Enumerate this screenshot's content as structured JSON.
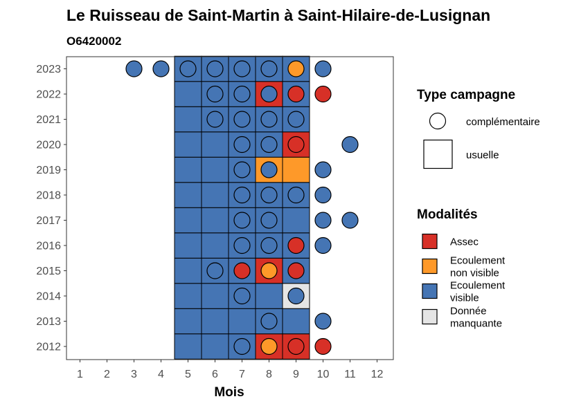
{
  "chart_data": {
    "type": "heatmap",
    "title": "Le Ruisseau de Saint-Martin à Saint-Hilaire-de-Lusignan",
    "subtitle": "O6420002",
    "xlabel": "Mois",
    "ylabel": "",
    "x_ticks": [
      "1",
      "2",
      "3",
      "4",
      "5",
      "6",
      "7",
      "8",
      "9",
      "10",
      "11",
      "12"
    ],
    "y_ticks": [
      "2012",
      "2013",
      "2014",
      "2015",
      "2016",
      "2017",
      "2018",
      "2019",
      "2020",
      "2021",
      "2022",
      "2023"
    ],
    "grid": false,
    "legend_position": "right",
    "colors": {
      "Assec": "#d73027",
      "Ecoulement non visible": "#fe9929",
      "Ecoulement visible": "#4575b4",
      "Donnée manquante": "#e5e5e5"
    },
    "legends": {
      "shape": {
        "title": "Type campagne",
        "items": [
          {
            "label": "complémentaire",
            "shape": "circle"
          },
          {
            "label": "usuelle",
            "shape": "square"
          }
        ]
      },
      "fill": {
        "title": "Modalités",
        "items": [
          {
            "key": "Assec",
            "lines": [
              "Assec"
            ]
          },
          {
            "key": "Ecoulement non visible",
            "lines": [
              "Ecoulement",
              "non visible"
            ]
          },
          {
            "key": "Ecoulement visible",
            "lines": [
              "Ecoulement",
              "visible"
            ]
          },
          {
            "key": "Donnée manquante",
            "lines": [
              "Donnée",
              "manquante"
            ]
          }
        ]
      }
    },
    "usuelle": [
      {
        "year": 2012,
        "values": {
          "5": "Ecoulement visible",
          "6": "Ecoulement visible",
          "7": "Ecoulement visible",
          "8": "Assec",
          "9": "Assec"
        }
      },
      {
        "year": 2013,
        "values": {
          "5": "Ecoulement visible",
          "6": "Ecoulement visible",
          "7": "Ecoulement visible",
          "8": "Ecoulement visible",
          "9": "Ecoulement visible"
        }
      },
      {
        "year": 2014,
        "values": {
          "5": "Ecoulement visible",
          "6": "Ecoulement visible",
          "7": "Ecoulement visible",
          "8": "Ecoulement visible",
          "9": "Donnée manquante"
        }
      },
      {
        "year": 2015,
        "values": {
          "5": "Ecoulement visible",
          "6": "Ecoulement visible",
          "7": "Ecoulement visible",
          "8": "Assec",
          "9": "Ecoulement visible"
        }
      },
      {
        "year": 2016,
        "values": {
          "5": "Ecoulement visible",
          "6": "Ecoulement visible",
          "7": "Ecoulement visible",
          "8": "Ecoulement visible",
          "9": "Ecoulement visible"
        }
      },
      {
        "year": 2017,
        "values": {
          "5": "Ecoulement visible",
          "6": "Ecoulement visible",
          "7": "Ecoulement visible",
          "8": "Ecoulement visible",
          "9": "Ecoulement visible"
        }
      },
      {
        "year": 2018,
        "values": {
          "5": "Ecoulement visible",
          "6": "Ecoulement visible",
          "7": "Ecoulement visible",
          "8": "Ecoulement visible",
          "9": "Ecoulement visible"
        }
      },
      {
        "year": 2019,
        "values": {
          "5": "Ecoulement visible",
          "6": "Ecoulement visible",
          "7": "Ecoulement visible",
          "8": "Ecoulement non visible",
          "9": "Ecoulement non visible"
        }
      },
      {
        "year": 2020,
        "values": {
          "5": "Ecoulement visible",
          "6": "Ecoulement visible",
          "7": "Ecoulement visible",
          "8": "Ecoulement visible",
          "9": "Assec"
        }
      },
      {
        "year": 2021,
        "values": {
          "5": "Ecoulement visible",
          "6": "Ecoulement visible",
          "7": "Ecoulement visible",
          "8": "Ecoulement visible",
          "9": "Ecoulement visible"
        }
      },
      {
        "year": 2022,
        "values": {
          "5": "Ecoulement visible",
          "6": "Ecoulement visible",
          "7": "Ecoulement visible",
          "8": "Assec",
          "9": "Ecoulement visible"
        }
      },
      {
        "year": 2023,
        "values": {
          "5": "Ecoulement visible",
          "6": "Ecoulement visible",
          "7": "Ecoulement visible",
          "8": "Ecoulement visible",
          "9": "Ecoulement visible"
        }
      }
    ],
    "complementaire": [
      {
        "year": 2012,
        "values": {
          "7": "Ecoulement visible",
          "8": "Ecoulement non visible",
          "9": "Assec",
          "10": "Assec"
        }
      },
      {
        "year": 2013,
        "values": {
          "8": "Ecoulement visible",
          "10": "Ecoulement visible"
        }
      },
      {
        "year": 2014,
        "values": {
          "7": "Ecoulement visible",
          "9": "Ecoulement visible"
        }
      },
      {
        "year": 2015,
        "values": {
          "6": "Ecoulement visible",
          "7": "Assec",
          "8": "Ecoulement non visible",
          "9": "Assec"
        }
      },
      {
        "year": 2016,
        "values": {
          "7": "Ecoulement visible",
          "8": "Ecoulement visible",
          "9": "Assec",
          "10": "Ecoulement visible"
        }
      },
      {
        "year": 2017,
        "values": {
          "7": "Ecoulement visible",
          "8": "Ecoulement visible",
          "10": "Ecoulement visible",
          "11": "Ecoulement visible"
        }
      },
      {
        "year": 2018,
        "values": {
          "7": "Ecoulement visible",
          "8": "Ecoulement visible",
          "9": "Ecoulement visible",
          "10": "Ecoulement visible"
        }
      },
      {
        "year": 2019,
        "values": {
          "7": "Ecoulement visible",
          "8": "Ecoulement visible",
          "10": "Ecoulement visible"
        }
      },
      {
        "year": 2020,
        "values": {
          "7": "Ecoulement visible",
          "8": "Ecoulement visible",
          "9": "Assec",
          "11": "Ecoulement visible"
        }
      },
      {
        "year": 2021,
        "values": {
          "6": "Ecoulement visible",
          "7": "Ecoulement visible",
          "8": "Ecoulement visible",
          "9": "Ecoulement visible"
        }
      },
      {
        "year": 2022,
        "values": {
          "6": "Ecoulement visible",
          "7": "Ecoulement visible",
          "8": "Ecoulement visible",
          "9": "Assec",
          "10": "Assec"
        }
      },
      {
        "year": 2023,
        "values": {
          "3": "Ecoulement visible",
          "4": "Ecoulement visible",
          "5": "Ecoulement visible",
          "6": "Ecoulement visible",
          "7": "Ecoulement visible",
          "8": "Ecoulement visible",
          "9": "Ecoulement non visible",
          "10": "Ecoulement visible"
        }
      }
    ]
  }
}
